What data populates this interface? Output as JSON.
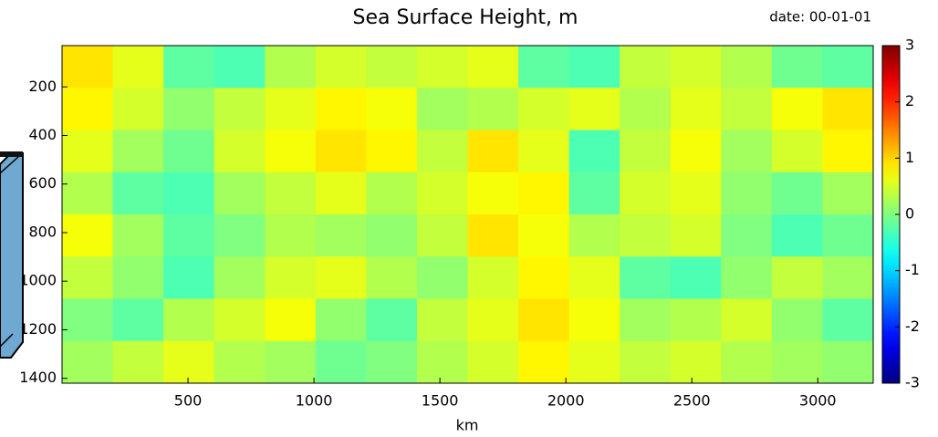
{
  "chart_data": {
    "type": "heatmap",
    "title": "Sea Surface Height, m",
    "subtitle": "date: 00-01-01",
    "x_label": "km",
    "xlim": [
      0,
      3220
    ],
    "xticks": [
      500,
      1000,
      1500,
      2000,
      2500,
      3000
    ],
    "ylim": [
      30,
      1420
    ],
    "yticks": [
      200,
      400,
      600,
      800,
      1000,
      1200,
      1400
    ],
    "y_inverted": true,
    "clim": [
      -3,
      3
    ],
    "cticks": [
      -3,
      -2,
      -1,
      0,
      1,
      2,
      3
    ],
    "colormap": "jet",
    "z": [
      [
        0.9,
        0.6,
        -0.2,
        -0.3,
        0.3,
        0.5,
        0.4,
        0.5,
        0.6,
        -0.2,
        -0.3,
        0.4,
        0.5,
        0.3,
        -0.1,
        -0.2
      ],
      [
        0.8,
        0.5,
        0.1,
        0.4,
        0.6,
        0.8,
        0.7,
        0.2,
        0.3,
        0.5,
        0.6,
        0.3,
        0.6,
        0.4,
        0.7,
        0.9
      ],
      [
        0.6,
        0.2,
        -0.1,
        0.5,
        0.7,
        0.9,
        0.8,
        0.4,
        0.9,
        0.6,
        -0.3,
        0.4,
        0.7,
        0.2,
        0.5,
        0.8
      ],
      [
        0.3,
        -0.2,
        -0.3,
        0.2,
        0.4,
        0.6,
        0.3,
        0.5,
        0.7,
        0.8,
        -0.2,
        0.5,
        0.6,
        0.1,
        -0.1,
        0.2
      ],
      [
        0.7,
        0.2,
        -0.2,
        0.0,
        0.3,
        0.2,
        0.1,
        0.4,
        0.9,
        0.7,
        0.3,
        0.4,
        0.5,
        0.0,
        -0.3,
        -0.1
      ],
      [
        0.4,
        0.1,
        -0.3,
        0.2,
        0.5,
        0.6,
        0.3,
        0.1,
        0.5,
        0.8,
        0.6,
        -0.2,
        -0.3,
        0.1,
        0.4,
        0.2
      ],
      [
        0.0,
        -0.2,
        0.3,
        0.5,
        0.7,
        0.1,
        -0.2,
        0.4,
        0.6,
        0.9,
        0.7,
        0.2,
        0.3,
        0.5,
        0.1,
        -0.2
      ],
      [
        0.2,
        0.4,
        0.6,
        0.3,
        0.2,
        -0.1,
        0.0,
        0.3,
        0.5,
        0.8,
        0.6,
        0.4,
        0.5,
        0.3,
        0.2,
        0.1
      ]
    ]
  }
}
